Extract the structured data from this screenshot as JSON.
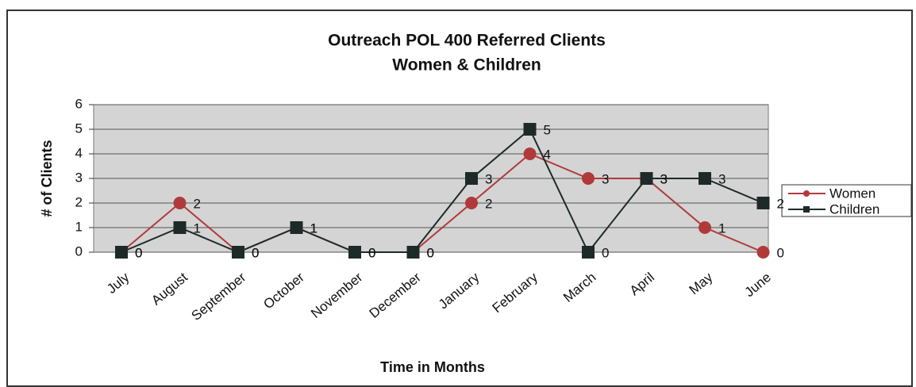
{
  "chart_data": {
    "type": "line",
    "title": "Outreach POL 400 Referred Clients",
    "subtitle": "Women & Children",
    "x_label": "Time in Months",
    "y_label": "# of Clients",
    "categories": [
      "July",
      "August",
      "September",
      "October",
      "November",
      "December",
      "January",
      "February",
      "March",
      "April",
      "May",
      "June"
    ],
    "series": [
      {
        "name": "Women",
        "color": "#b03a3a",
        "marker": "circle",
        "values": [
          0,
          2,
          0,
          1,
          0,
          0,
          2,
          4,
          3,
          3,
          1,
          0
        ]
      },
      {
        "name": "Children",
        "color": "#1e2a28",
        "marker": "square",
        "values": [
          0,
          1,
          0,
          1,
          0,
          0,
          3,
          5,
          0,
          3,
          3,
          2
        ]
      }
    ],
    "ylim": [
      0,
      6
    ],
    "yticks": [
      0,
      1,
      2,
      3,
      4,
      5,
      6
    ],
    "grid": true,
    "legend": "right"
  }
}
